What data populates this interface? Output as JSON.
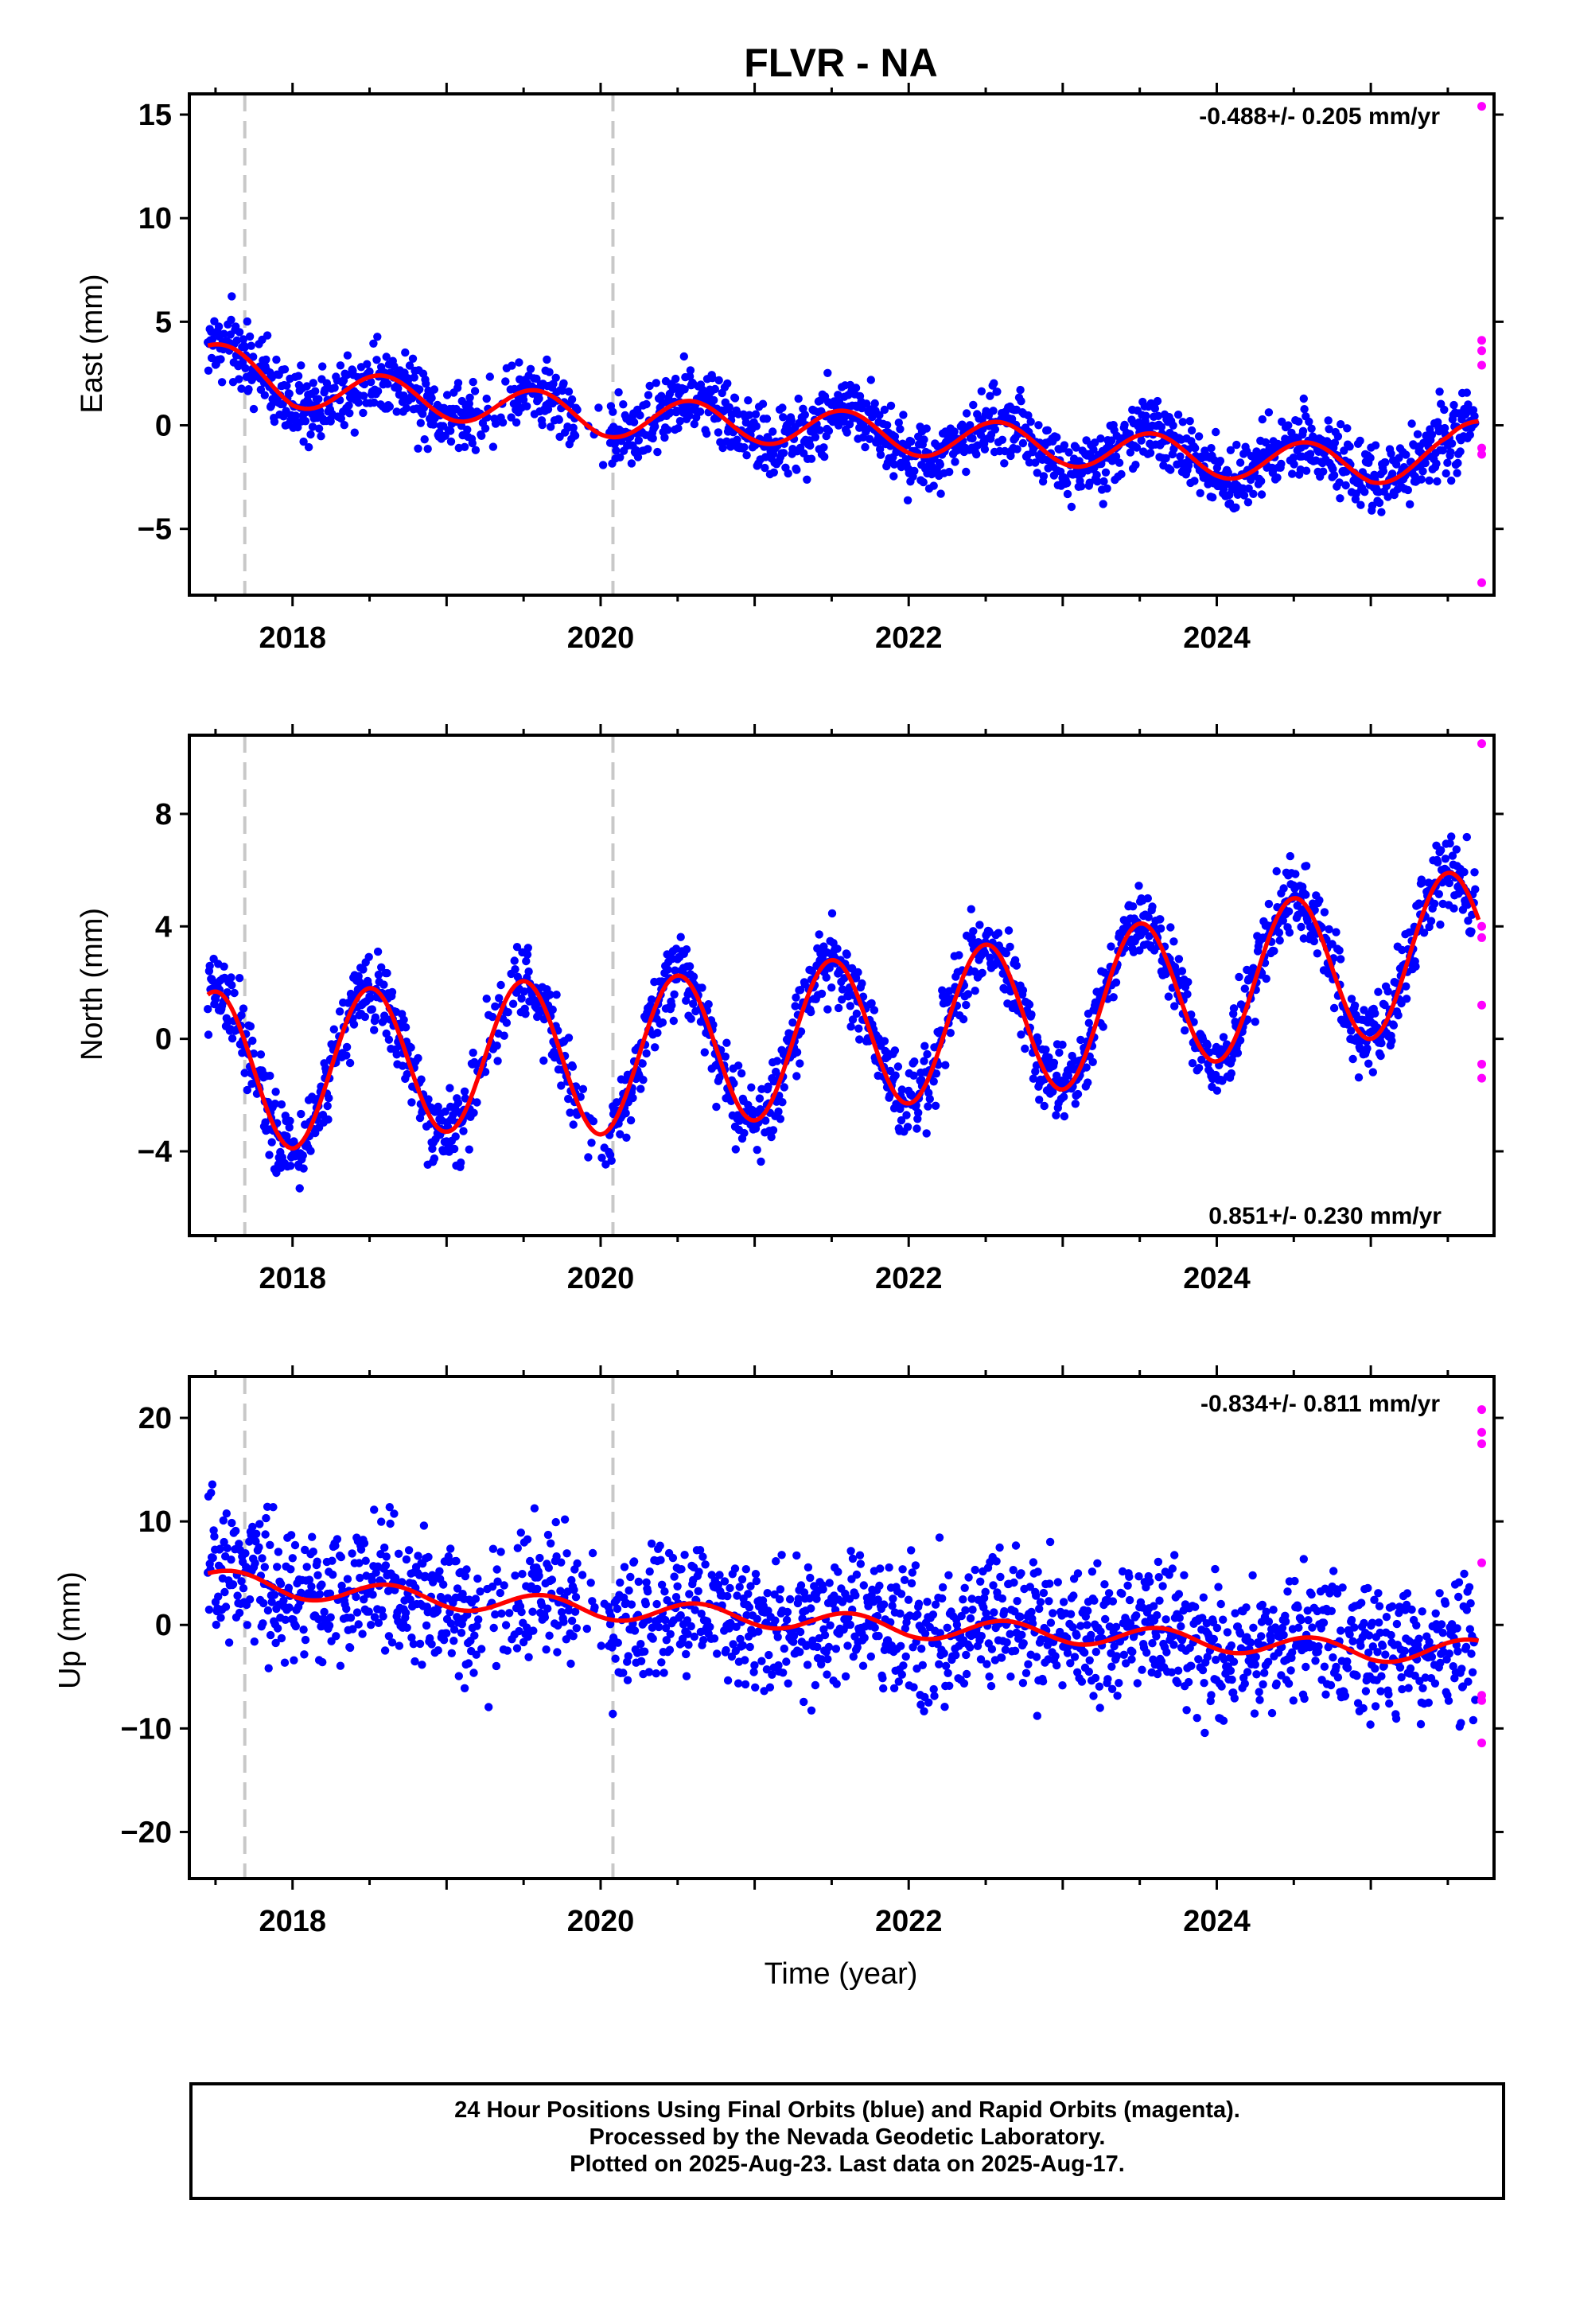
{
  "title": "FLVR - NA",
  "xlabel": "Time (year)",
  "colors": {
    "final": "#0000ff",
    "rapid": "#ff00ff",
    "model": "#ff0000",
    "event": "#c8c8c8"
  },
  "footer": {
    "line1": "24 Hour Positions Using Final Orbits (blue) and Rapid Orbits (magenta).",
    "line2": "Processed by the Nevada Geodetic Laboratory.",
    "line3": "Plotted on 2025-Aug-23. Last data on 2025-Aug-17."
  },
  "chart_data": [
    {
      "type": "scatter",
      "ylabel": "East (mm)",
      "rate": "-0.488+/- 0.205 mm/yr",
      "rate_position": "top-right",
      "xlim": [
        2017.33,
        2025.8
      ],
      "ylim": [
        -8.2,
        16
      ],
      "yticks": [
        -5,
        0,
        5,
        10,
        15
      ],
      "ytick_labels": [
        "−5",
        "0",
        "5",
        "10",
        "15"
      ],
      "xticks": [
        2018,
        2020,
        2022,
        2024
      ],
      "xtick_labels": [
        "2018",
        "2020",
        "2022",
        "2024"
      ],
      "event_lines": [
        2017.69,
        2020.08
      ],
      "model": {
        "base": [
          [
            2017.45,
            3.2
          ],
          [
            2018,
            1.8
          ],
          [
            2019,
            1.2
          ],
          [
            2020,
            0.4
          ],
          [
            2021,
            0.1
          ],
          [
            2022,
            -0.5
          ],
          [
            2023,
            -1.0
          ],
          [
            2024,
            -1.6
          ],
          [
            2025,
            -1.9
          ],
          [
            2025.5,
            -1.4
          ],
          [
            2025.7,
            -0.5
          ]
        ],
        "amp": 0.95,
        "phase": 0.58,
        "noise": 1.25
      },
      "rapid_points": [
        [
          2025.72,
          15.4
        ],
        [
          2025.72,
          4.1
        ],
        [
          2025.72,
          3.6
        ],
        [
          2025.72,
          2.9
        ],
        [
          2025.72,
          -1.1
        ],
        [
          2025.72,
          -1.4
        ],
        [
          2025.72,
          -7.6
        ]
      ]
    },
    {
      "type": "scatter",
      "ylabel": "North (mm)",
      "rate": "0.851+/- 0.230 mm/yr",
      "rate_position": "bottom-right",
      "xlim": [
        2017.33,
        2025.8
      ],
      "ylim": [
        -7.0,
        10.8
      ],
      "yticks": [
        -4,
        0,
        4,
        8
      ],
      "ytick_labels": [
        "−4",
        "0",
        "4",
        "8"
      ],
      "xticks": [
        2018,
        2020,
        2022,
        2024
      ],
      "xtick_labels": [
        "2018",
        "2020",
        "2022",
        "2024"
      ],
      "event_lines": [
        2017.69,
        2020.08
      ],
      "model": {
        "base": [
          [
            2017.45,
            -1.0
          ],
          [
            2018,
            -1.2
          ],
          [
            2019,
            -0.6
          ],
          [
            2020,
            -0.7
          ],
          [
            2021,
            -0.2
          ],
          [
            2022,
            0.4
          ],
          [
            2023,
            0.9
          ],
          [
            2024,
            1.9
          ],
          [
            2025,
            2.7
          ],
          [
            2025.7,
            3.4
          ]
        ],
        "amp": 2.7,
        "phase": 0.5,
        "noise": 1.0
      },
      "rapid_points": [
        [
          2025.72,
          10.5
        ],
        [
          2025.72,
          4.0
        ],
        [
          2025.72,
          3.6
        ],
        [
          2025.72,
          1.2
        ],
        [
          2025.72,
          -0.9
        ],
        [
          2025.72,
          -1.4
        ]
      ]
    },
    {
      "type": "scatter",
      "ylabel": "Up (mm)",
      "rate": "-0.834+/- 0.811 mm/yr",
      "rate_position": "top-right",
      "xlim": [
        2017.33,
        2025.8
      ],
      "ylim": [
        -24.5,
        24
      ],
      "yticks": [
        -20,
        -10,
        0,
        10,
        20
      ],
      "ytick_labels": [
        "−20",
        "−10",
        "0",
        "10",
        "20"
      ],
      "xticks": [
        2018,
        2020,
        2022,
        2024
      ],
      "xtick_labels": [
        "2018",
        "2020",
        "2022",
        "2024"
      ],
      "event_lines": [
        2017.69,
        2020.08
      ],
      "model": {
        "base": [
          [
            2017.45,
            4.5
          ],
          [
            2018,
            3.5
          ],
          [
            2019,
            2.5
          ],
          [
            2020,
            1.5
          ],
          [
            2021,
            0.8
          ],
          [
            2022,
            -0.3
          ],
          [
            2023,
            -0.8
          ],
          [
            2024,
            -1.6
          ],
          [
            2025,
            -2.6
          ],
          [
            2025.7,
            -2.4
          ]
        ],
        "amp": 1.0,
        "phase": 0.62,
        "noise": 4.8
      },
      "rapid_points": [
        [
          2025.72,
          20.8
        ],
        [
          2025.72,
          18.6
        ],
        [
          2025.72,
          17.5
        ],
        [
          2025.72,
          6.0
        ],
        [
          2025.72,
          -6.8
        ],
        [
          2025.72,
          -7.3
        ],
        [
          2025.72,
          -11.4
        ]
      ]
    }
  ]
}
